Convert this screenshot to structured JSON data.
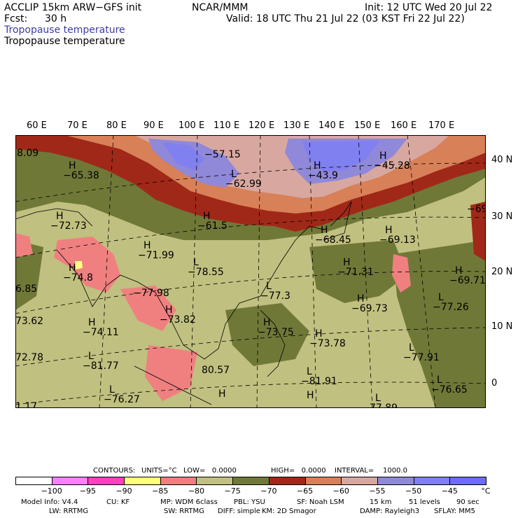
{
  "header": {
    "model": "ACCLIP 15km ARW−GFS init",
    "org": "NCAR/MMM",
    "init": "Init: 12 UTC Wed 20 Jul 22",
    "fcst_label": "Fcst:",
    "fcst_value": "30 h",
    "valid": "Valid: 18 UTC Thu 21 Jul 22 (03 KST Fri 22 Jul 22)",
    "field1": "Tropopause temperature",
    "field2": "Tropopause temperature",
    "field1_color": "#3c3ca0"
  },
  "map": {
    "lon_labels": [
      "60 E",
      "70 E",
      "80 E",
      "90 E",
      "100 E",
      "110 E",
      "120 E",
      "130 E",
      "140 E",
      "150 E",
      "160 E",
      "170 E"
    ],
    "lat_labels": [
      "40 N",
      "30 N",
      "20 N",
      "10 N",
      "0"
    ],
    "extrema": [
      {
        "type": "",
        "value": "8.09"
      },
      {
        "type": "H",
        "value": "−65.38"
      },
      {
        "type": "",
        "value": "−57.15"
      },
      {
        "type": "L",
        "value": "−62.99"
      },
      {
        "type": "H",
        "value": "−43.9"
      },
      {
        "type": "H",
        "value": "−45.28"
      },
      {
        "type": "",
        "value": "−69"
      },
      {
        "type": "H",
        "value": "−72.73"
      },
      {
        "type": "H",
        "value": "−61.5"
      },
      {
        "type": "H",
        "value": "−68.45"
      },
      {
        "type": "H",
        "value": "−69.13"
      },
      {
        "type": "H",
        "value": "−71.99"
      },
      {
        "type": "L",
        "value": "−78.55"
      },
      {
        "type": "H",
        "value": "−71.31"
      },
      {
        "type": "H",
        "value": "−74.8"
      },
      {
        "type": "",
        "value": "6.85"
      },
      {
        "type": "H",
        "value": "−69.71"
      },
      {
        "type": "",
        "value": "−77.98"
      },
      {
        "type": "L",
        "value": "−77.3"
      },
      {
        "type": "H",
        "value": "−69.73"
      },
      {
        "type": "",
        "value": "73.62"
      },
      {
        "type": "H",
        "value": "−74.11"
      },
      {
        "type": "H",
        "value": "−73.82"
      },
      {
        "type": "H",
        "value": "−73.75"
      },
      {
        "type": "H",
        "value": "−73.78"
      },
      {
        "type": "L",
        "value": "−77.26"
      },
      {
        "type": "",
        "value": "72.78"
      },
      {
        "type": "L",
        "value": "−81.77"
      },
      {
        "type": "",
        "value": "80.57"
      },
      {
        "type": "L",
        "value": "−77.91"
      },
      {
        "type": "L",
        "value": "−81.91"
      },
      {
        "type": "L",
        "value": "−76.65"
      },
      {
        "type": "",
        "value": "1.17"
      },
      {
        "type": "L",
        "value": "−76.27"
      },
      {
        "type": "H",
        "value": ""
      },
      {
        "type": "H",
        "value": ""
      },
      {
        "type": "L",
        "value": "77.89"
      }
    ]
  },
  "contours_line": {
    "contours": "CONTOURS:",
    "units": "UNITS=°C",
    "low": "LOW=   0.0000",
    "high": "HIGH=   0.0000",
    "interval": "INTERVAL=    1000.0"
  },
  "colorbar": {
    "colors": [
      "#ffffff",
      "#ff80ff",
      "#ff40c0",
      "#ffff80",
      "#f08080",
      "#c0c080",
      "#707838",
      "#a02818",
      "#d88058",
      "#d8a8a0",
      "#9088d8",
      "#8080f0",
      "#6c6cf8"
    ],
    "ticks": [
      "−100",
      "−95",
      "−90",
      "−85",
      "−80",
      "−75",
      "−70",
      "−65",
      "−60",
      "−55",
      "−50",
      "−45",
      "−40"
    ],
    "unit": "°C"
  },
  "footer": {
    "line1": [
      "Model Info: V4.4",
      "CU: KF",
      "MP: WDM 6class",
      "PBL: YSU",
      "SF: Noah LSM",
      "15 km",
      "51 levels",
      "90 sec"
    ],
    "line2": [
      "LW: RRTMG",
      "SW: RRTMG",
      "DIFF: simple",
      "KM: 2D Smagor",
      "DAMP: Rayleigh3",
      "SFLAY: MM5"
    ]
  }
}
